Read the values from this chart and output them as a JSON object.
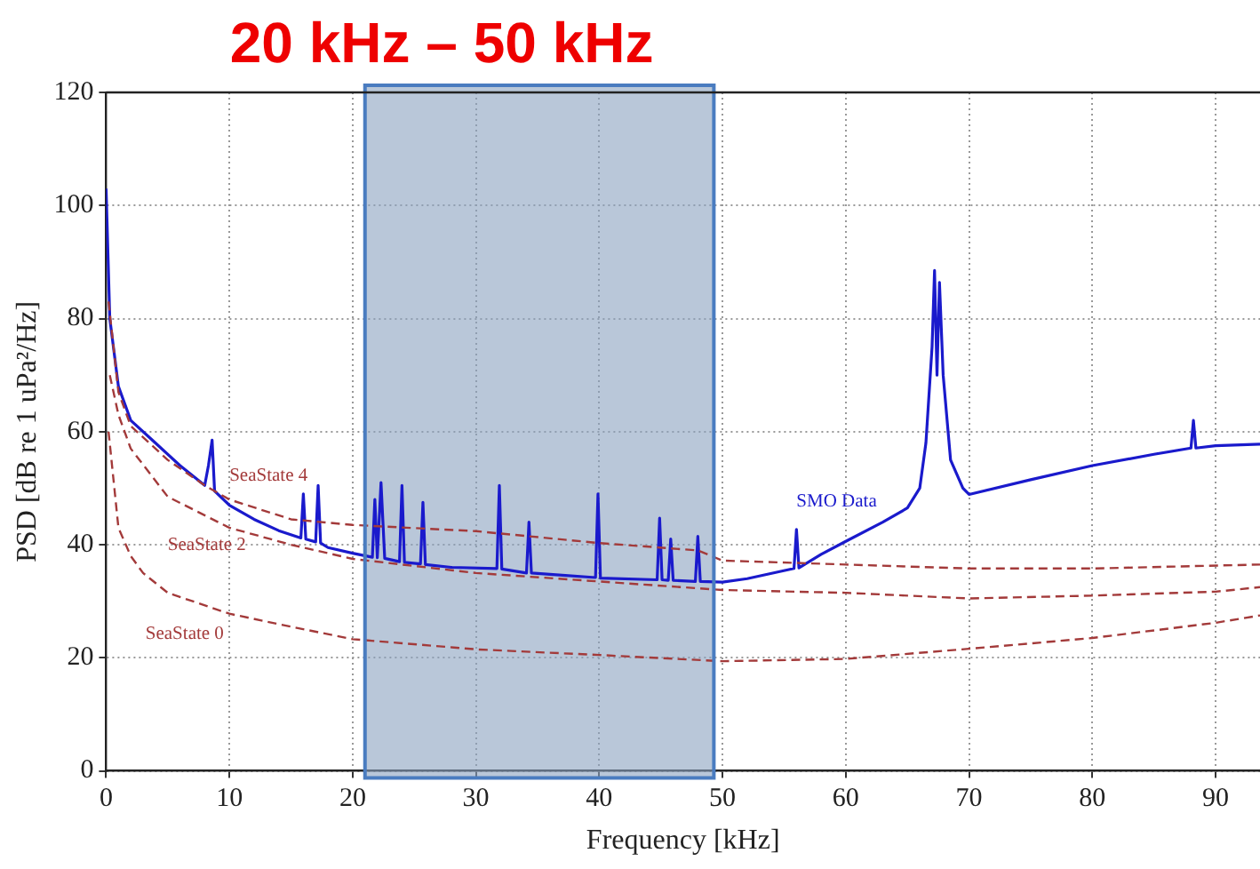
{
  "chart_data": {
    "type": "line",
    "xlabel": "Frequency [kHz]",
    "ylabel": "PSD [dB re 1 uPa²/Hz]",
    "xlim": [
      0,
      93.6
    ],
    "xticks": [
      0,
      10,
      20,
      30,
      40,
      50,
      60,
      70,
      80,
      90
    ],
    "ylim": [
      0,
      120
    ],
    "yticks": [
      0,
      20,
      40,
      60,
      80,
      100,
      120
    ],
    "grid": true,
    "legend": false,
    "marker": "none",
    "series": [
      {
        "name": "SMO Data",
        "color": "#1a1acc",
        "line_style": "solid",
        "x": [
          0,
          0.3,
          1,
          2,
          4,
          6,
          8,
          8.3,
          8.6,
          8.8,
          10,
          12,
          14,
          15.8,
          16,
          16.2,
          17,
          17.2,
          17.4,
          18,
          20,
          21.6,
          21.8,
          22,
          22.3,
          22.6,
          23.8,
          24,
          24.2,
          25.5,
          25.7,
          25.9,
          28,
          31.7,
          31.9,
          32.1,
          34.1,
          34.3,
          34.5,
          37,
          39.7,
          39.9,
          40.1,
          44.7,
          44.9,
          45.1,
          45.6,
          45.8,
          46,
          47.8,
          48,
          48.2,
          50,
          52,
          55.8,
          56,
          56.2,
          58,
          60,
          63,
          65,
          66,
          66.5,
          67,
          67.2,
          67.4,
          67.6,
          67.9,
          68.5,
          69.5,
          70,
          75,
          80,
          85,
          88,
          88.2,
          88.4,
          90,
          93.6
        ],
        "values": [
          103,
          80,
          68,
          62,
          58,
          54,
          50.5,
          54,
          58.5,
          49.5,
          47,
          44.5,
          42.5,
          41.2,
          49,
          41,
          40.5,
          50.5,
          40.3,
          39.5,
          38.5,
          37.8,
          48,
          37.7,
          51,
          37.6,
          37,
          50.5,
          36.9,
          36.6,
          47.5,
          36.5,
          36,
          35.8,
          50.5,
          35.7,
          35,
          44,
          35,
          34.6,
          34.2,
          49,
          34.1,
          33.8,
          44.7,
          33.8,
          33.7,
          41,
          33.7,
          33.5,
          41.5,
          33.5,
          33.4,
          34,
          35.8,
          42.7,
          35.9,
          38.3,
          40.6,
          44,
          46.5,
          50,
          58,
          75,
          88.5,
          70,
          86.4,
          70,
          55,
          50,
          48.9,
          51.5,
          54,
          56,
          57.1,
          62,
          57.1,
          57.5,
          57.8
        ]
      },
      {
        "name": "SeaState 4",
        "color": "#a33a3a",
        "line_style": "dashed",
        "x": [
          0.2,
          1,
          2,
          5,
          8,
          10,
          15,
          20,
          30,
          40,
          48,
          50,
          60,
          70,
          80,
          93.6
        ],
        "values": [
          83,
          67,
          61,
          55,
          50.5,
          48,
          44.5,
          43.5,
          42.4,
          40.3,
          39,
          37.2,
          36.5,
          35.8,
          35.8,
          36.5
        ]
      },
      {
        "name": "SeaState 2",
        "color": "#a33a3a",
        "line_style": "dashed",
        "x": [
          0.3,
          1,
          2,
          5,
          10,
          15,
          20,
          30,
          40,
          50,
          60,
          70,
          80,
          90,
          93.6
        ],
        "values": [
          70,
          63,
          57,
          48.5,
          43,
          40,
          37.5,
          35,
          33.5,
          32,
          31.5,
          30.5,
          31,
          31.7,
          32.5
        ]
      },
      {
        "name": "SeaState 0",
        "color": "#a33a3a",
        "line_style": "dashed",
        "x": [
          0.2,
          1,
          2,
          3,
          5,
          10,
          15,
          20,
          30,
          40,
          50,
          60,
          70,
          80,
          90,
          93.6
        ],
        "values": [
          60,
          43,
          38,
          35,
          31.5,
          27.8,
          25.5,
          23.3,
          21.5,
          20.5,
          19.4,
          19.8,
          21.6,
          23.5,
          26.2,
          27.5
        ]
      }
    ],
    "bands": [
      {
        "axis": "x",
        "from": 21,
        "to": 49.3,
        "label": "20 kHz – 50 kHz",
        "color": "#8aa2c0"
      }
    ]
  }
}
